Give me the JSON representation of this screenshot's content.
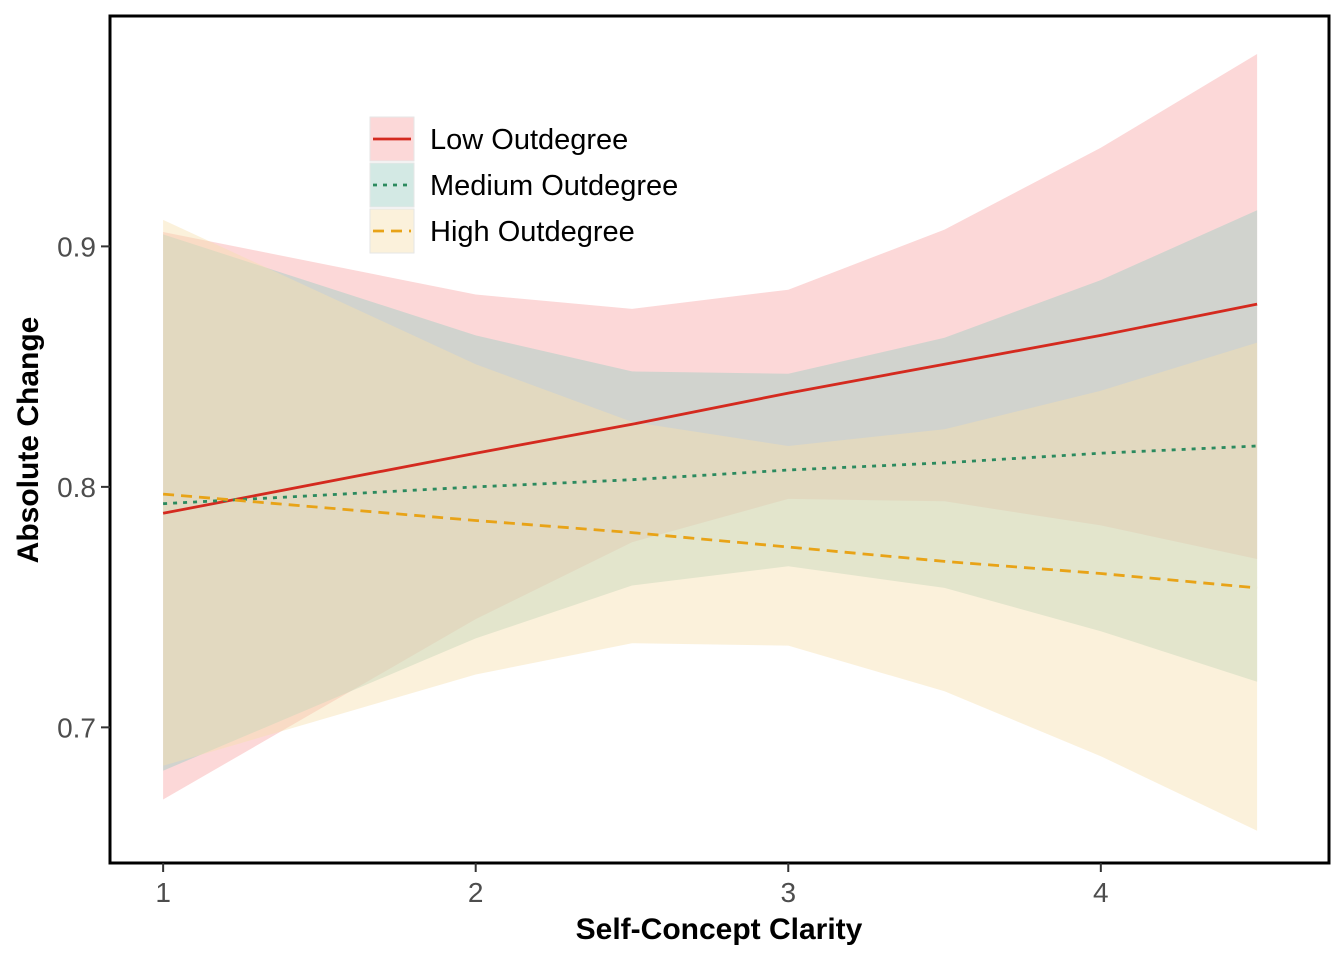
{
  "chart_data": {
    "type": "line",
    "title": "",
    "xlabel": "Self-Concept Clarity",
    "ylabel": "Absolute Change",
    "xlim": [
      0.83,
      4.73
    ],
    "ylim": [
      0.6436,
      0.9958
    ],
    "xticks": [
      1,
      2,
      3,
      4
    ],
    "xtick_labels": [
      "1",
      "2",
      "3",
      "4"
    ],
    "yticks": [
      0.7,
      0.8,
      0.9
    ],
    "ytick_labels": [
      "0.7",
      "0.8",
      "0.9"
    ],
    "grid": false,
    "legend_position": "top-left inside",
    "x": [
      1,
      2,
      2.5,
      3,
      3.5,
      4,
      4.5
    ],
    "series": [
      {
        "name": "Low Outdegree",
        "line_style": "solid",
        "line_color": "#d42a1f",
        "band_color": "#f9a8a8",
        "line": [
          0.789,
          0.814,
          0.826,
          0.839,
          0.851,
          0.863,
          0.876
        ],
        "upper": [
          0.906,
          0.88,
          0.874,
          0.882,
          0.907,
          0.941,
          0.98
        ],
        "lower": [
          0.67,
          0.745,
          0.777,
          0.795,
          0.794,
          0.784,
          0.77
        ]
      },
      {
        "name": "Medium Outdegree",
        "line_style": "dotted",
        "line_color": "#2b8a5e",
        "band_color": "#9ecfc4",
        "line": [
          0.793,
          0.8,
          0.803,
          0.807,
          0.81,
          0.814,
          0.817
        ],
        "upper": [
          0.905,
          0.863,
          0.848,
          0.847,
          0.862,
          0.886,
          0.915
        ],
        "lower": [
          0.682,
          0.737,
          0.759,
          0.767,
          0.758,
          0.74,
          0.719
        ]
      },
      {
        "name": "High Outdegree",
        "line_style": "dashed",
        "line_color": "#e8a317",
        "band_color": "#f6dfb0",
        "line": [
          0.797,
          0.786,
          0.781,
          0.775,
          0.769,
          0.764,
          0.758
        ],
        "upper": [
          0.911,
          0.851,
          0.827,
          0.817,
          0.824,
          0.84,
          0.86
        ],
        "lower": [
          0.684,
          0.722,
          0.735,
          0.734,
          0.715,
          0.688,
          0.657
        ]
      }
    ]
  }
}
